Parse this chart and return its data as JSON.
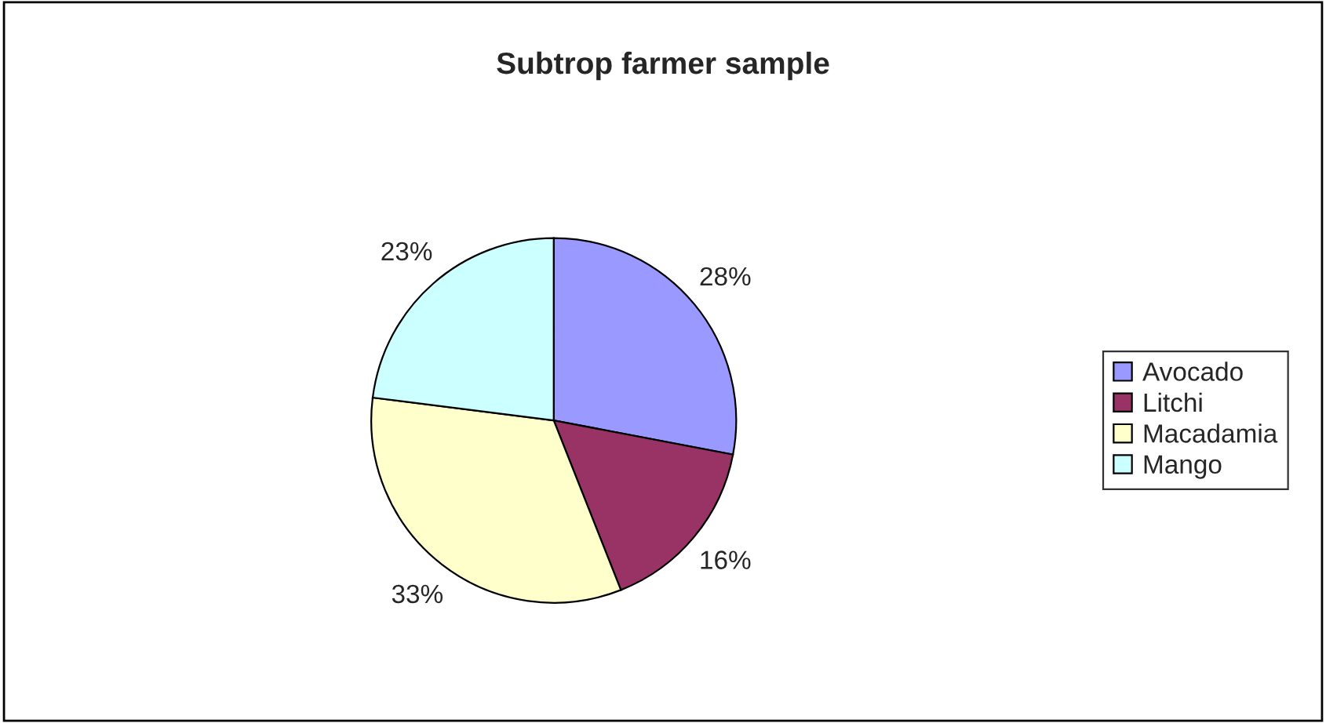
{
  "chart_data": {
    "type": "pie",
    "title": "Subtrop farmer sample",
    "categories": [
      "Avocado",
      "Litchi",
      "Macadamia",
      "Mango"
    ],
    "values": [
      28,
      16,
      33,
      23
    ],
    "colors": [
      "#9999ff",
      "#993366",
      "#ffffcc",
      "#ccffff"
    ],
    "value_labels": [
      "28%",
      "16%",
      "33%",
      "23%"
    ],
    "legend": "right"
  }
}
